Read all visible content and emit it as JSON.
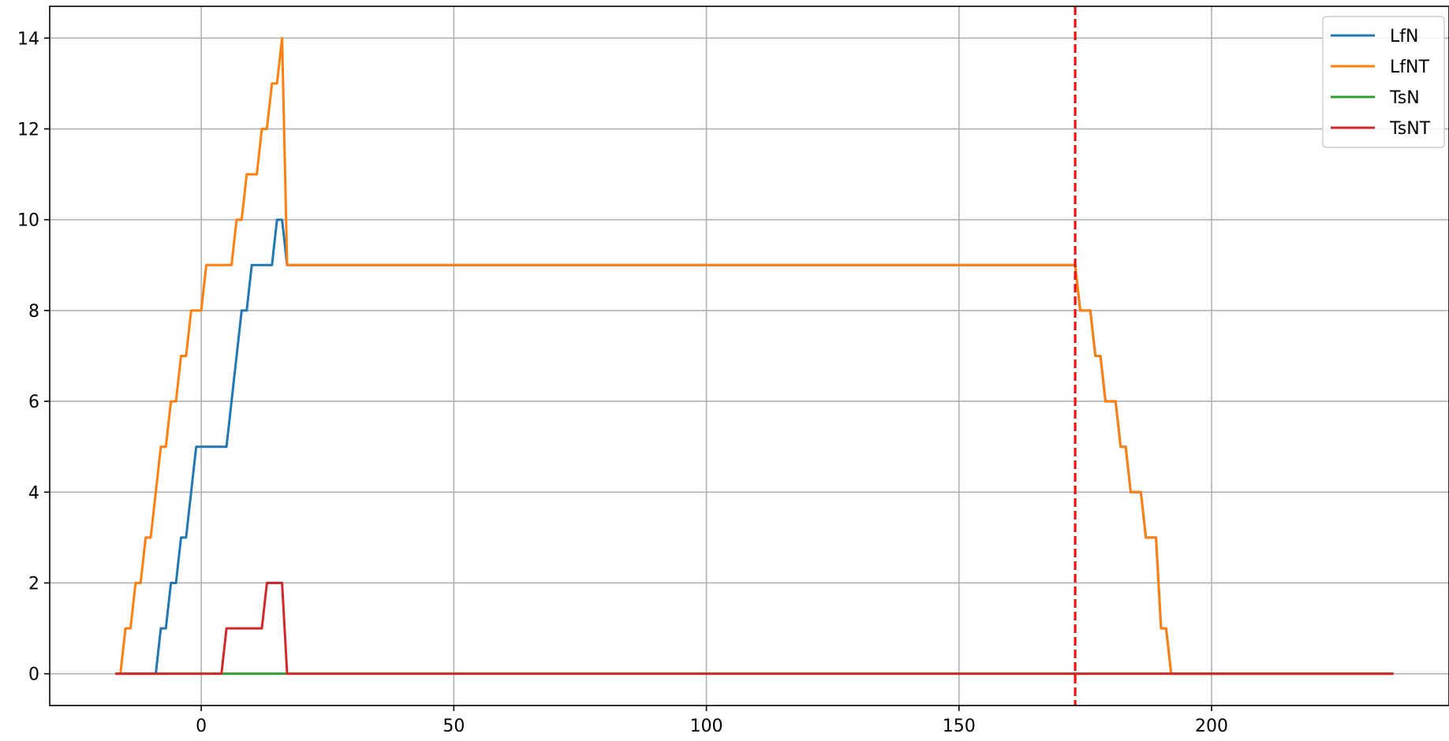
{
  "chart_data": {
    "type": "line",
    "title": "",
    "xlabel": "",
    "ylabel": "",
    "xlim": [
      -30,
      247
    ],
    "ylim": [
      -0.7,
      14.7
    ],
    "xticks": [
      0,
      50,
      100,
      150,
      200
    ],
    "yticks": [
      0,
      2,
      4,
      6,
      8,
      10,
      12,
      14
    ],
    "grid": true,
    "legend_position": "top-right",
    "vline": {
      "x": 173,
      "color": "#ee1111",
      "style": "dashed"
    },
    "series": [
      {
        "name": "LfN",
        "color": "#1f77b4",
        "points": [
          [
            -17,
            0
          ],
          [
            -9,
            0
          ],
          [
            -8,
            1
          ],
          [
            -7,
            1
          ],
          [
            -6,
            2
          ],
          [
            -5,
            2
          ],
          [
            -4,
            3
          ],
          [
            -3,
            3
          ],
          [
            -1,
            5
          ],
          [
            5,
            5
          ],
          [
            8,
            8
          ],
          [
            9,
            8
          ],
          [
            10,
            9
          ],
          [
            14,
            9
          ],
          [
            15,
            10
          ],
          [
            16,
            10
          ],
          [
            17,
            9
          ],
          [
            173,
            9
          ],
          [
            174,
            8
          ],
          [
            176,
            8
          ],
          [
            177,
            7
          ],
          [
            178,
            7
          ],
          [
            179,
            6
          ],
          [
            181,
            6
          ],
          [
            182,
            5
          ],
          [
            183,
            5
          ],
          [
            184,
            4
          ],
          [
            186,
            4
          ],
          [
            187,
            3
          ],
          [
            189,
            3
          ],
          [
            190,
            1
          ],
          [
            191,
            1
          ],
          [
            192,
            0
          ],
          [
            236,
            0
          ]
        ]
      },
      {
        "name": "LfNT",
        "color": "#ff7f0e",
        "points": [
          [
            -17,
            0
          ],
          [
            -16,
            0
          ],
          [
            -15,
            1
          ],
          [
            -14,
            1
          ],
          [
            -13,
            2
          ],
          [
            -12,
            2
          ],
          [
            -11,
            3
          ],
          [
            -10,
            3
          ],
          [
            -8,
            5
          ],
          [
            -7,
            5
          ],
          [
            -6,
            6
          ],
          [
            -5,
            6
          ],
          [
            -4,
            7
          ],
          [
            -3,
            7
          ],
          [
            -2,
            8
          ],
          [
            0,
            8
          ],
          [
            1,
            9
          ],
          [
            6,
            9
          ],
          [
            7,
            10
          ],
          [
            8,
            10
          ],
          [
            9,
            11
          ],
          [
            11,
            11
          ],
          [
            12,
            12
          ],
          [
            13,
            12
          ],
          [
            14,
            13
          ],
          [
            15,
            13
          ],
          [
            16,
            14
          ],
          [
            17,
            9
          ],
          [
            173,
            9
          ],
          [
            174,
            8
          ],
          [
            176,
            8
          ],
          [
            177,
            7
          ],
          [
            178,
            7
          ],
          [
            179,
            6
          ],
          [
            181,
            6
          ],
          [
            182,
            5
          ],
          [
            183,
            5
          ],
          [
            184,
            4
          ],
          [
            186,
            4
          ],
          [
            187,
            3
          ],
          [
            189,
            3
          ],
          [
            190,
            1
          ],
          [
            191,
            1
          ],
          [
            192,
            0
          ],
          [
            236,
            0
          ]
        ]
      },
      {
        "name": "TsN",
        "color": "#2ca02c",
        "points": [
          [
            -17,
            0
          ],
          [
            236,
            0
          ]
        ]
      },
      {
        "name": "TsNT",
        "color": "#d62728",
        "points": [
          [
            -17,
            0
          ],
          [
            4,
            0
          ],
          [
            5,
            1
          ],
          [
            12,
            1
          ],
          [
            13,
            2
          ],
          [
            16,
            2
          ],
          [
            17,
            0
          ],
          [
            236,
            0
          ]
        ]
      }
    ]
  }
}
